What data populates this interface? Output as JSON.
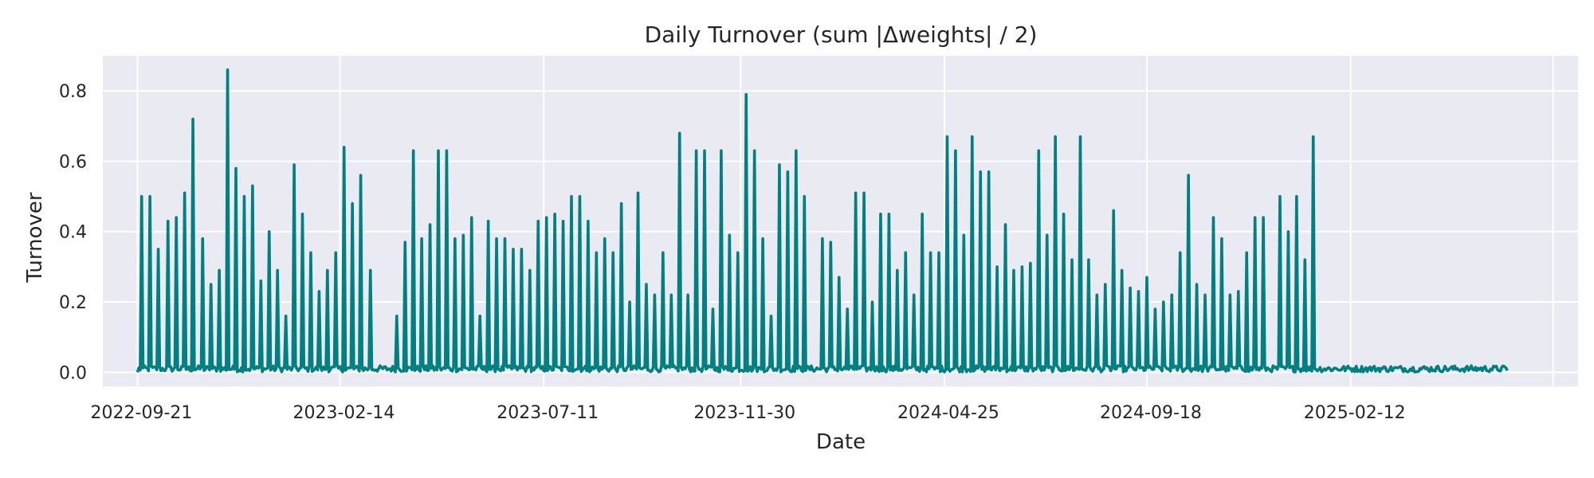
{
  "chart_data": {
    "type": "line",
    "title": "Daily Turnover (sum |Δweights| / 2)",
    "xlabel": "Date",
    "ylabel": "Turnover",
    "x_ticks": [
      "2022-09-21",
      "2023-02-14",
      "2023-07-11",
      "2023-11-30",
      "2024-04-25",
      "2024-09-18",
      "2025-02-12"
    ],
    "y_ticks": [
      "0.0",
      "0.2",
      "0.4",
      "0.6",
      "0.8"
    ],
    "xlim": [
      "2022-08-27",
      "2025-07-26"
    ],
    "ylim": [
      -0.04,
      0.9
    ],
    "grid": true,
    "legend": "none",
    "colors": {
      "line": "#008080",
      "plot_bg": "#eaeaf2",
      "grid": "#ffffff"
    },
    "x_start": "2022-09-21",
    "x_end": "2025-06-05",
    "baseline": 0.01,
    "spikes": [
      [
        "2022-09-24",
        0.5
      ],
      [
        "2022-09-30",
        0.5
      ],
      [
        "2022-10-06",
        0.35
      ],
      [
        "2022-10-13",
        0.43
      ],
      [
        "2022-10-19",
        0.44
      ],
      [
        "2022-10-25",
        0.51
      ],
      [
        "2022-10-31",
        0.72
      ],
      [
        "2022-11-07",
        0.38
      ],
      [
        "2022-11-13",
        0.25
      ],
      [
        "2022-11-19",
        0.29
      ],
      [
        "2022-11-25",
        0.86
      ],
      [
        "2022-12-01",
        0.58
      ],
      [
        "2022-12-07",
        0.5
      ],
      [
        "2022-12-13",
        0.53
      ],
      [
        "2022-12-19",
        0.26
      ],
      [
        "2022-12-25",
        0.4
      ],
      [
        "2022-12-31",
        0.29
      ],
      [
        "2023-01-06",
        0.16
      ],
      [
        "2023-01-12",
        0.59
      ],
      [
        "2023-01-18",
        0.45
      ],
      [
        "2023-01-24",
        0.34
      ],
      [
        "2023-01-30",
        0.23
      ],
      [
        "2023-02-05",
        0.29
      ],
      [
        "2023-02-11",
        0.34
      ],
      [
        "2023-02-17",
        0.64
      ],
      [
        "2023-02-23",
        0.48
      ],
      [
        "2023-03-01",
        0.56
      ],
      [
        "2023-03-08",
        0.29
      ],
      [
        "2023-03-27",
        0.16
      ],
      [
        "2023-04-02",
        0.37
      ],
      [
        "2023-04-08",
        0.63
      ],
      [
        "2023-04-14",
        0.38
      ],
      [
        "2023-04-20",
        0.42
      ],
      [
        "2023-04-26",
        0.63
      ],
      [
        "2023-05-02",
        0.63
      ],
      [
        "2023-05-08",
        0.38
      ],
      [
        "2023-05-14",
        0.39
      ],
      [
        "2023-05-20",
        0.44
      ],
      [
        "2023-05-26",
        0.16
      ],
      [
        "2023-06-01",
        0.43
      ],
      [
        "2023-06-07",
        0.38
      ],
      [
        "2023-06-13",
        0.38
      ],
      [
        "2023-06-19",
        0.35
      ],
      [
        "2023-06-25",
        0.35
      ],
      [
        "2023-07-01",
        0.29
      ],
      [
        "2023-07-07",
        0.43
      ],
      [
        "2023-07-13",
        0.44
      ],
      [
        "2023-07-19",
        0.45
      ],
      [
        "2023-07-25",
        0.43
      ],
      [
        "2023-07-31",
        0.5
      ],
      [
        "2023-08-06",
        0.5
      ],
      [
        "2023-08-12",
        0.43
      ],
      [
        "2023-08-18",
        0.34
      ],
      [
        "2023-08-24",
        0.38
      ],
      [
        "2023-08-30",
        0.34
      ],
      [
        "2023-09-05",
        0.48
      ],
      [
        "2023-09-11",
        0.2
      ],
      [
        "2023-09-17",
        0.51
      ],
      [
        "2023-09-23",
        0.25
      ],
      [
        "2023-09-29",
        0.22
      ],
      [
        "2023-10-05",
        0.34
      ],
      [
        "2023-10-11",
        0.22
      ],
      [
        "2023-10-17",
        0.68
      ],
      [
        "2023-10-23",
        0.22
      ],
      [
        "2023-10-29",
        0.63
      ],
      [
        "2023-11-04",
        0.63
      ],
      [
        "2023-11-10",
        0.18
      ],
      [
        "2023-11-16",
        0.63
      ],
      [
        "2023-11-22",
        0.39
      ],
      [
        "2023-11-28",
        0.34
      ],
      [
        "2023-12-04",
        0.79
      ],
      [
        "2023-12-10",
        0.63
      ],
      [
        "2023-12-16",
        0.38
      ],
      [
        "2023-12-22",
        0.16
      ],
      [
        "2023-12-28",
        0.59
      ],
      [
        "2024-01-03",
        0.57
      ],
      [
        "2024-01-09",
        0.63
      ],
      [
        "2024-01-15",
        0.5
      ],
      [
        "2024-01-28",
        0.38
      ],
      [
        "2024-02-03",
        0.37
      ],
      [
        "2024-02-09",
        0.27
      ],
      [
        "2024-02-15",
        0.18
      ],
      [
        "2024-02-21",
        0.51
      ],
      [
        "2024-02-27",
        0.51
      ],
      [
        "2024-03-04",
        0.2
      ],
      [
        "2024-03-10",
        0.45
      ],
      [
        "2024-03-16",
        0.45
      ],
      [
        "2024-03-22",
        0.29
      ],
      [
        "2024-03-28",
        0.34
      ],
      [
        "2024-04-03",
        0.22
      ],
      [
        "2024-04-09",
        0.45
      ],
      [
        "2024-04-15",
        0.34
      ],
      [
        "2024-04-21",
        0.34
      ],
      [
        "2024-04-27",
        0.67
      ],
      [
        "2024-05-03",
        0.63
      ],
      [
        "2024-05-09",
        0.39
      ],
      [
        "2024-05-15",
        0.67
      ],
      [
        "2024-05-21",
        0.57
      ],
      [
        "2024-05-27",
        0.57
      ],
      [
        "2024-06-02",
        0.3
      ],
      [
        "2024-06-08",
        0.42
      ],
      [
        "2024-06-14",
        0.29
      ],
      [
        "2024-06-20",
        0.3
      ],
      [
        "2024-06-26",
        0.31
      ],
      [
        "2024-07-02",
        0.63
      ],
      [
        "2024-07-08",
        0.39
      ],
      [
        "2024-07-14",
        0.67
      ],
      [
        "2024-07-20",
        0.45
      ],
      [
        "2024-07-26",
        0.32
      ],
      [
        "2024-08-01",
        0.67
      ],
      [
        "2024-08-07",
        0.32
      ],
      [
        "2024-08-13",
        0.22
      ],
      [
        "2024-08-19",
        0.25
      ],
      [
        "2024-08-25",
        0.46
      ],
      [
        "2024-08-31",
        0.29
      ],
      [
        "2024-09-06",
        0.24
      ],
      [
        "2024-09-12",
        0.23
      ],
      [
        "2024-09-18",
        0.27
      ],
      [
        "2024-09-24",
        0.18
      ],
      [
        "2024-09-30",
        0.2
      ],
      [
        "2024-10-06",
        0.22
      ],
      [
        "2024-10-12",
        0.34
      ],
      [
        "2024-10-18",
        0.56
      ],
      [
        "2024-10-24",
        0.25
      ],
      [
        "2024-10-30",
        0.22
      ],
      [
        "2024-11-05",
        0.44
      ],
      [
        "2024-11-11",
        0.38
      ],
      [
        "2024-11-17",
        0.22
      ],
      [
        "2024-11-23",
        0.23
      ],
      [
        "2024-11-29",
        0.34
      ],
      [
        "2024-12-05",
        0.44
      ],
      [
        "2024-12-11",
        0.44
      ],
      [
        "2024-12-23",
        0.5
      ],
      [
        "2024-12-29",
        0.4
      ],
      [
        "2025-01-04",
        0.5
      ],
      [
        "2025-01-10",
        0.32
      ],
      [
        "2025-01-16",
        0.67
      ]
    ]
  }
}
